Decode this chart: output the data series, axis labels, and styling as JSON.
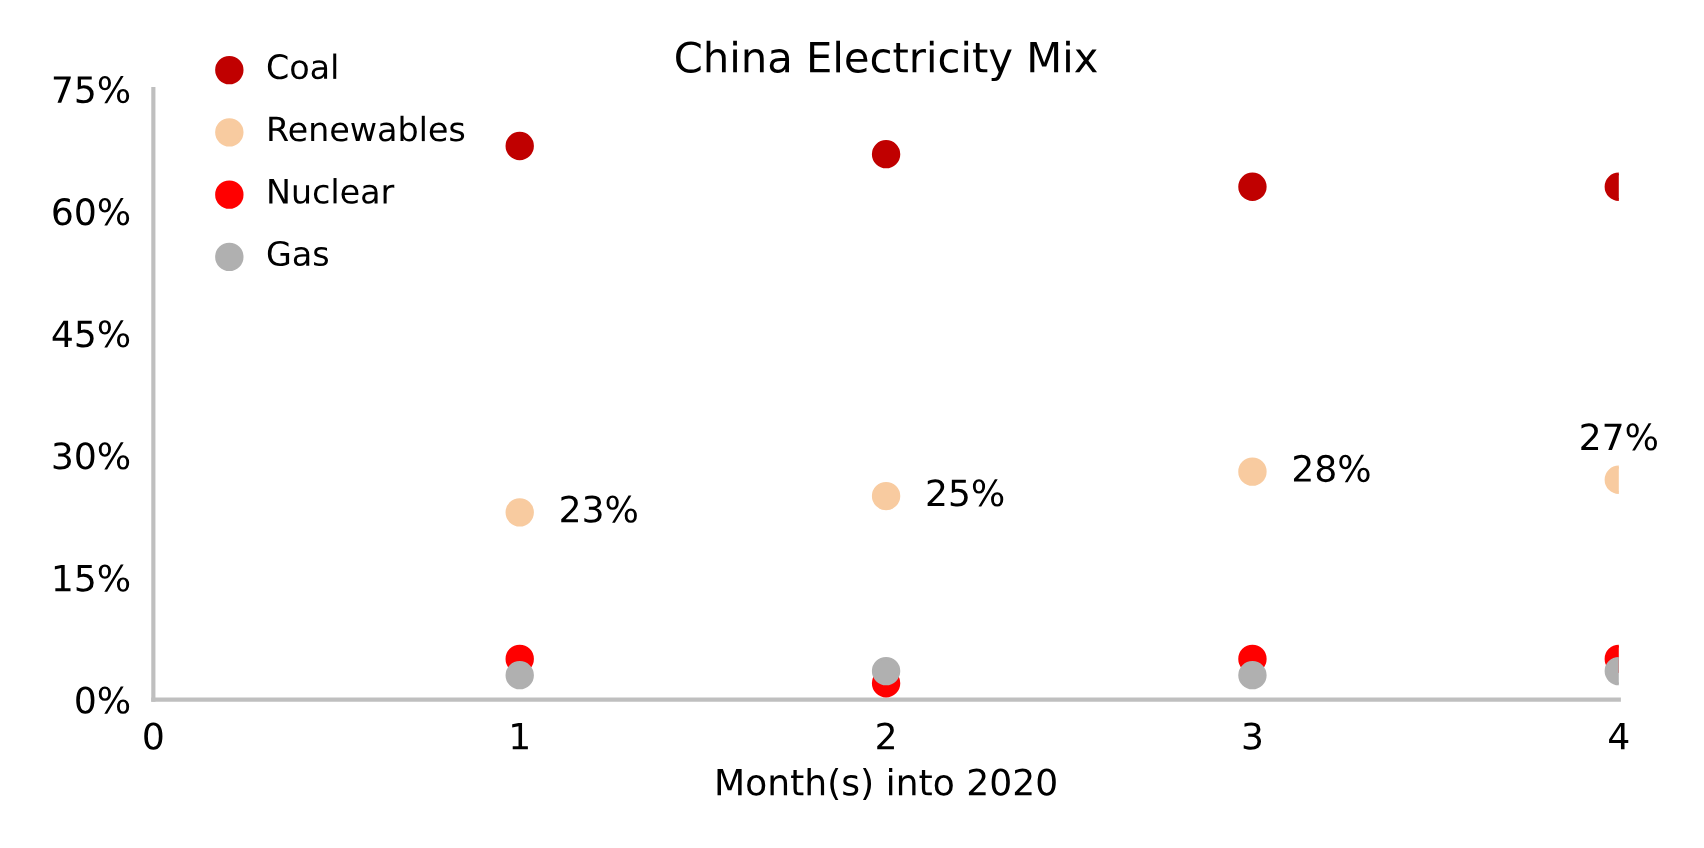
{
  "chart_data": {
    "type": "scatter",
    "title": "China Electricity Mix",
    "xlabel": "Month(s) into 2020",
    "x": [
      1,
      2,
      3,
      4
    ],
    "series": [
      {
        "name": "Coal",
        "color": "#c00000",
        "values": [
          68,
          67,
          63,
          63
        ]
      },
      {
        "name": "Renewables",
        "color": "#f8cba0",
        "values": [
          23,
          25,
          28,
          27
        ],
        "value_labels": [
          "23%",
          "25%",
          "28%",
          "27%"
        ]
      },
      {
        "name": "Nuclear",
        "color": "#ff0000",
        "values": [
          5,
          2,
          5,
          5
        ]
      },
      {
        "name": "Gas",
        "color": "#b0b0b0",
        "values": [
          3,
          3.5,
          3,
          3.5
        ]
      }
    ],
    "xlim": [
      0,
      4
    ],
    "xticks": [
      0,
      1,
      2,
      3,
      4
    ],
    "ylim": [
      0,
      75
    ],
    "yticks": [
      {
        "value": 0,
        "label": "0%"
      },
      {
        "value": 15,
        "label": "15%"
      },
      {
        "value": 30,
        "label": "30%"
      },
      {
        "value": 45,
        "label": "45%"
      },
      {
        "value": 60,
        "label": "60%"
      },
      {
        "value": 75,
        "label": "75%"
      }
    ],
    "grid": false,
    "legend": "top left",
    "marker": "circle"
  }
}
